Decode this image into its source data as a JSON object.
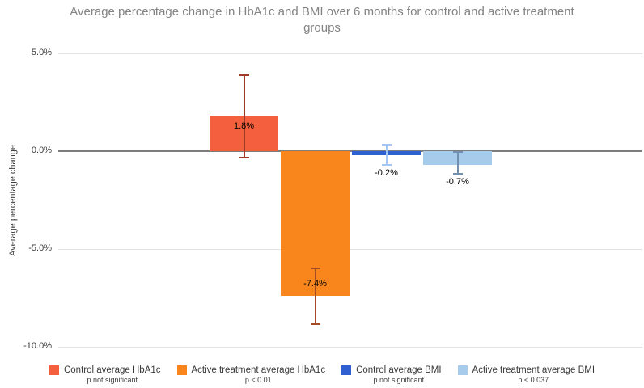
{
  "chart_data": {
    "type": "bar",
    "title": "Average percentage change in HbA1c and BMI over 6 months for control and active treatment groups",
    "ylabel": "Average percentage change",
    "ylim": [
      -10.4,
      5.0
    ],
    "grid": true,
    "legend_position": "bottom",
    "categories": [
      ""
    ],
    "yticks": [
      {
        "label": "5.0%",
        "value": 5
      },
      {
        "label": "0.0%",
        "value": 0
      },
      {
        "label": "-5.0%",
        "value": -5
      },
      {
        "label": "-10.0%",
        "value": -10
      }
    ],
    "series": [
      {
        "name": "Control average HbA1c",
        "p_label": "p not significant",
        "value": 1.8,
        "value_label": "1.8%",
        "error_high": 3.9,
        "error_low": -0.35,
        "color": "#F4603D",
        "error_color": "#A03A28",
        "label_placement": "inside-top"
      },
      {
        "name": "Active treatment average HbA1c",
        "p_label": "p < 0.01",
        "value": -7.4,
        "value_label": "-7.4%",
        "error_high": -6.0,
        "error_low": -8.85,
        "color": "#F8861D",
        "error_color": "#A34A26",
        "label_placement": "inside-bottom"
      },
      {
        "name": "Control average BMI",
        "p_label": "p not significant",
        "value": -0.2,
        "value_label": "-0.2%",
        "error_high": 0.35,
        "error_low": -0.7,
        "color": "#2F5FD0",
        "error_color": "#A6C6F2",
        "label_placement": "below"
      },
      {
        "name": "Active treatment average BMI",
        "p_label": "p < 0.037",
        "value": -0.7,
        "value_label": "-0.7%",
        "error_high": -0.05,
        "error_low": -1.15,
        "color": "#A7CBEA",
        "error_color": "#7290AD",
        "label_placement": "below"
      }
    ]
  }
}
